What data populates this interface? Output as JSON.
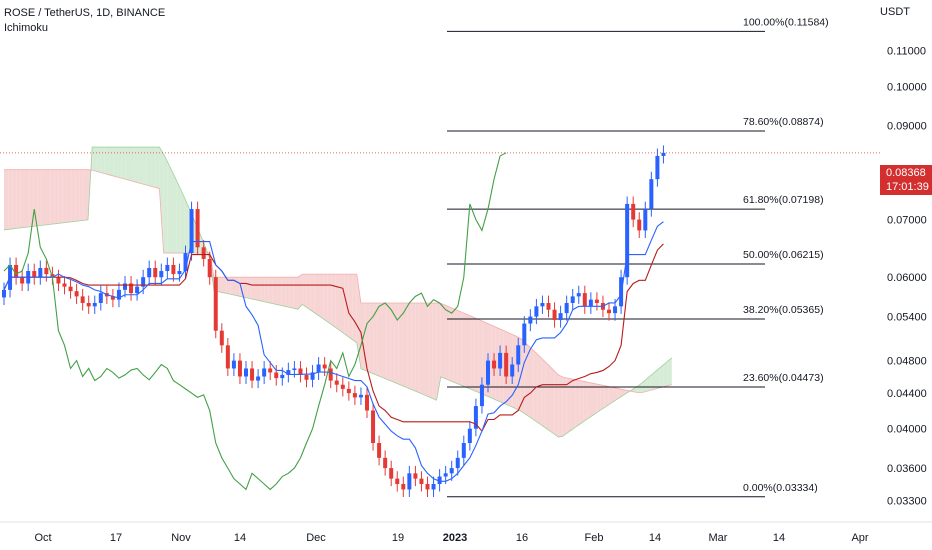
{
  "header": {
    "symbol_line": "ROSE / TetherUS, 1D, BINANCE",
    "indicator": "Ichimoku"
  },
  "axis": {
    "unit": "USDT",
    "y_ticks": [
      "0.11000",
      "0.10000",
      "0.09000",
      "0.07000",
      "0.06000",
      "0.05400",
      "0.04800",
      "0.04400",
      "0.04000",
      "0.03600",
      "0.03300"
    ],
    "y_tick_values": [
      0.11,
      0.1,
      0.09,
      0.07,
      0.06,
      0.054,
      0.048,
      0.044,
      0.04,
      0.036,
      0.033
    ],
    "x_ticks": [
      "Oct",
      "17",
      "Nov",
      "14",
      "Dec",
      "19",
      "2023",
      "16",
      "Feb",
      "14",
      "Mar",
      "14",
      "Apr"
    ]
  },
  "last_price": {
    "value": "0.08368",
    "countdown": "17:01:39"
  },
  "colors": {
    "bull": "#2962ff",
    "bear": "#e53935",
    "kijun": "#b71c1c",
    "tenkan": "#2962ff",
    "chikou": "#43a047",
    "cloud_bear": "#f8d5d5",
    "cloud_bull": "#d6ecd6",
    "fib": "#131722"
  },
  "chart_data": {
    "type": "candlestick",
    "y_scale": "log",
    "ylim": [
      0.0315,
      0.122
    ],
    "fib_levels": [
      {
        "label": "0.00%(0.03334)",
        "value": 0.03334
      },
      {
        "label": "23.60%(0.04473)",
        "value": 0.04473
      },
      {
        "label": "38.20%(0.05365)",
        "value": 0.05365
      },
      {
        "label": "50.00%(0.06215)",
        "value": 0.06215
      },
      {
        "label": "61.80%(0.07198)",
        "value": 0.07198
      },
      {
        "label": "78.60%(0.08874)",
        "value": 0.08874
      },
      {
        "label": "100.00%(0.11584)",
        "value": 0.11584
      }
    ],
    "candles_close": [
      0.058,
      0.062,
      0.06,
      0.059,
      0.061,
      0.06,
      0.0615,
      0.0605,
      0.06,
      0.059,
      0.0585,
      0.0578,
      0.057,
      0.056,
      0.0555,
      0.056,
      0.0575,
      0.057,
      0.0565,
      0.058,
      0.059,
      0.0575,
      0.0585,
      0.06,
      0.0615,
      0.06,
      0.061,
      0.062,
      0.0605,
      0.061,
      0.064,
      0.072,
      0.065,
      0.063,
      0.06,
      0.052,
      0.05,
      0.047,
      0.048,
      0.046,
      0.047,
      0.0455,
      0.046,
      0.047,
      0.0465,
      0.0458,
      0.0462,
      0.0468,
      0.047,
      0.0462,
      0.0456,
      0.0465,
      0.0475,
      0.047,
      0.0455,
      0.045,
      0.0445,
      0.044,
      0.0435,
      0.0438,
      0.042,
      0.0385,
      0.037,
      0.036,
      0.035,
      0.0345,
      0.034,
      0.0355,
      0.035,
      0.0345,
      0.034,
      0.0345,
      0.0352,
      0.0355,
      0.036,
      0.037,
      0.0385,
      0.04,
      0.0425,
      0.045,
      0.048,
      0.047,
      0.049,
      0.046,
      0.0475,
      0.05,
      0.053,
      0.054,
      0.0555,
      0.056,
      0.055,
      0.0535,
      0.0545,
      0.056,
      0.057,
      0.0575,
      0.0555,
      0.0565,
      0.056,
      0.055,
      0.0545,
      0.0555,
      0.06,
      0.073,
      0.07,
      0.068,
      0.072,
      0.078,
      0.083,
      0.0837
    ],
    "ichimoku_lines": [
      "Tenkan-sen",
      "Kijun-sen",
      "Chikou span",
      "Senkou span A",
      "Senkou span B"
    ]
  }
}
